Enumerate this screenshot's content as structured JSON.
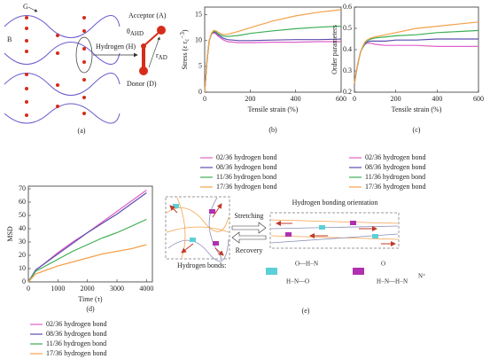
{
  "diagram_a": {
    "g": "G",
    "b": "B",
    "hydrogen": "Hydrogen (H)",
    "acceptor": "Acceptor (A)",
    "theta": "θ",
    "theta_sub": "AHD",
    "r": "r",
    "r_sub": "AD",
    "donor": "Donor (D)",
    "panel": "(a)"
  },
  "diagram_e": {
    "stretching": "Stretching",
    "recovery": "Recovery",
    "orientation": "Hydrogen bonding orientation",
    "bonds": "Hydrogen bonds:",
    "chem1_top": "O—H−N",
    "chem1_bottom": "H−N—O",
    "chem2_top": "O",
    "chem2_bottom": "H−N—H−N",
    "chem2_ion": "N⁺",
    "panel": "(e)"
  },
  "chart_data": [
    {
      "type": "line",
      "panel": "(b)",
      "ylabel": "Stress (ε r",
      "ylabel_sub": "c",
      "ylabel_sup": "−3",
      "ylabel_end": ")",
      "xlabel": "Tensile strain (%)",
      "x": [
        0,
        10,
        20,
        30,
        40,
        50,
        60,
        80,
        100,
        150,
        200,
        300,
        400,
        500,
        600
      ],
      "xlim": [
        0,
        600
      ],
      "xticks": [
        0,
        200,
        400,
        600
      ],
      "ylim": [
        0,
        16.5
      ],
      "yticks": [
        0,
        5,
        10,
        15
      ],
      "legend": "bottom",
      "series": [
        {
          "name": "02/36 hydrogen bond",
          "color": "#e060c8",
          "values": [
            0,
            6,
            10,
            11.3,
            11.5,
            11.3,
            10.8,
            10.2,
            9.8,
            9.6,
            9.6,
            9.7,
            9.7,
            9.8,
            9.8
          ]
        },
        {
          "name": "08/36 hydrogen bond",
          "color": "#5b4fb0",
          "values": [
            0,
            6,
            10,
            11.4,
            11.7,
            11.5,
            11.1,
            10.5,
            10.2,
            10,
            10,
            10.1,
            10.2,
            10.2,
            10.3
          ]
        },
        {
          "name": "11/36 hydrogen bond",
          "color": "#3cae55",
          "values": [
            0,
            6,
            10,
            11.4,
            11.8,
            11.7,
            11.3,
            10.9,
            10.8,
            11,
            11.4,
            11.9,
            12.3,
            12.6,
            12.8
          ]
        },
        {
          "name": "17/36 hydrogen bond",
          "color": "#f5a04a",
          "values": [
            0,
            6,
            10,
            11.5,
            12,
            11.9,
            11.6,
            11.2,
            11.2,
            11.8,
            12.5,
            13.8,
            14.8,
            15.5,
            16
          ]
        }
      ]
    },
    {
      "type": "line",
      "panel": "(c)",
      "ylabel": "Order parameters",
      "xlabel": "Tensile strain (%)",
      "x": [
        0,
        10,
        20,
        30,
        40,
        50,
        60,
        80,
        100,
        150,
        200,
        300,
        400,
        500,
        600
      ],
      "xlim": [
        0,
        600
      ],
      "xticks": [
        0,
        200,
        400,
        600
      ],
      "ylim": [
        0.2,
        0.6
      ],
      "yticks": [
        0.2,
        0.3,
        0.4,
        0.5,
        0.6
      ],
      "legend": "bottom",
      "series": [
        {
          "name": "02/36 hydrogen bond",
          "color": "#e060c8",
          "values": [
            0.24,
            0.3,
            0.35,
            0.39,
            0.41,
            0.425,
            0.43,
            0.43,
            0.425,
            0.42,
            0.42,
            0.42,
            0.415,
            0.415,
            0.415
          ]
        },
        {
          "name": "08/36 hydrogen bond",
          "color": "#5b4fb0",
          "values": [
            0.24,
            0.3,
            0.35,
            0.39,
            0.41,
            0.425,
            0.435,
            0.44,
            0.44,
            0.44,
            0.445,
            0.445,
            0.45,
            0.45,
            0.45
          ]
        },
        {
          "name": "11/36 hydrogen bond",
          "color": "#3cae55",
          "values": [
            0.24,
            0.3,
            0.35,
            0.39,
            0.41,
            0.43,
            0.44,
            0.45,
            0.455,
            0.46,
            0.465,
            0.47,
            0.48,
            0.485,
            0.49
          ]
        },
        {
          "name": "17/36 hydrogen bond",
          "color": "#f5a04a",
          "values": [
            0.24,
            0.3,
            0.35,
            0.39,
            0.415,
            0.435,
            0.445,
            0.455,
            0.46,
            0.47,
            0.48,
            0.5,
            0.51,
            0.52,
            0.53
          ]
        }
      ]
    },
    {
      "type": "line",
      "panel": "(d)",
      "ylabel": "MSD",
      "xlabel": "Time (τ)",
      "x": [
        0,
        250,
        500,
        1000,
        1500,
        2000,
        2500,
        3000,
        3500,
        4000
      ],
      "xlim": [
        0,
        4200
      ],
      "xticks": [
        0,
        1000,
        2000,
        3000,
        4000
      ],
      "ylim": [
        0,
        72
      ],
      "yticks": [
        0,
        10,
        20,
        30,
        40,
        50,
        60,
        70
      ],
      "legend": "bottom",
      "series": [
        {
          "name": "02/36 hydrogen bond",
          "color": "#e060c8",
          "values": [
            0,
            9,
            13,
            22,
            30,
            37,
            45,
            53,
            61,
            69
          ]
        },
        {
          "name": "08/36 hydrogen bond",
          "color": "#5b4fb0",
          "values": [
            0,
            9,
            13,
            21,
            29,
            37,
            44,
            51,
            59,
            67
          ]
        },
        {
          "name": "11/36 hydrogen bond",
          "color": "#3cae55",
          "values": [
            0,
            8,
            11,
            17,
            23,
            28,
            33,
            37,
            42,
            47
          ]
        },
        {
          "name": "17/36 hydrogen bond",
          "color": "#f5a04a",
          "values": [
            0,
            6,
            8,
            12,
            15,
            18,
            21,
            23,
            25,
            28
          ]
        }
      ]
    }
  ]
}
